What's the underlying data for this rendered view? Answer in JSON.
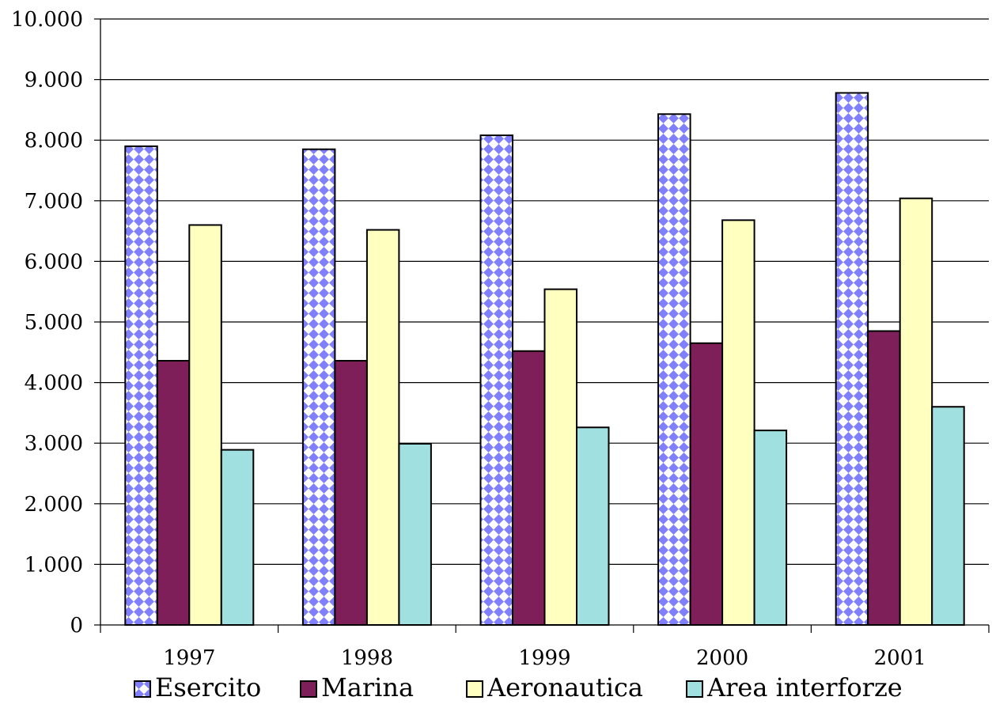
{
  "chart_data": {
    "type": "bar",
    "title": "",
    "xlabel": "",
    "ylabel": "",
    "categories": [
      "1997",
      "1998",
      "1999",
      "2000",
      "2001"
    ],
    "ylim": [
      0,
      10000
    ],
    "yticks": [
      0,
      1000,
      2000,
      3000,
      4000,
      5000,
      6000,
      7000,
      8000,
      9000,
      10000
    ],
    "ytick_labels": [
      "0",
      "1.000",
      "2.000",
      "3.000",
      "4.000",
      "5.000",
      "6.000",
      "7.000",
      "8.000",
      "9.000",
      "10.000"
    ],
    "grid": "horizontal",
    "legend_position": "bottom",
    "series": [
      {
        "name": "Esercito",
        "values": [
          7900,
          7850,
          8080,
          8430,
          8780
        ],
        "color": "#8080ff",
        "pattern": "checker-diamond"
      },
      {
        "name": "Marina",
        "values": [
          4360,
          4360,
          4520,
          4650,
          4850
        ],
        "color": "#7f1f5a"
      },
      {
        "name": "Aeronautica",
        "values": [
          6600,
          6520,
          5540,
          6680,
          7040
        ],
        "color": "#ffffc0"
      },
      {
        "name": "Area interforze",
        "values": [
          2890,
          2990,
          3260,
          3210,
          3600
        ],
        "color": "#a0e0e0"
      }
    ]
  }
}
